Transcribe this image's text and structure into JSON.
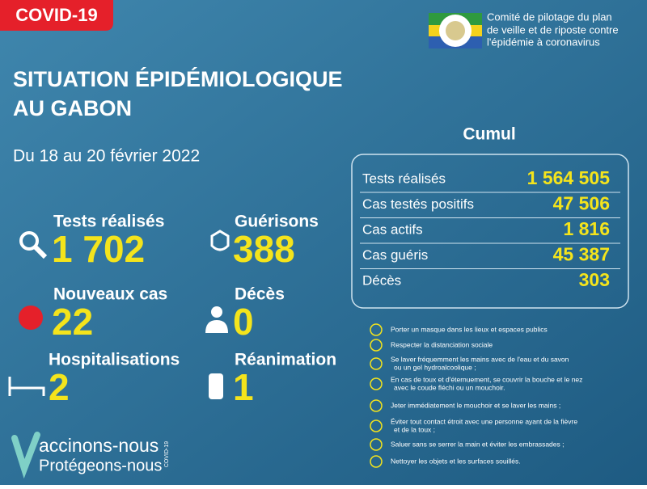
{
  "badge": "COVID-19",
  "committee": {
    "lines": [
      "Comité de pilotage du plan",
      "de veille et de riposte contre",
      "l'épidémie à coronavirus"
    ]
  },
  "title": {
    "lines": [
      "SITUATION ÉPIDÉMIOLOGIQUE",
      "AU GABON"
    ]
  },
  "period": "Du 18 au 20 février 2022",
  "stats": [
    {
      "label": "Tests réalisés",
      "value": "1 702"
    },
    {
      "label": "Guérisons",
      "value": "388"
    },
    {
      "label": "Nouveaux cas",
      "value": "22"
    },
    {
      "label": "Décès",
      "value": "0"
    },
    {
      "label": "Hospitalisations",
      "value": "2"
    },
    {
      "label": "Réanimation",
      "value": "1"
    }
  ],
  "cumul": {
    "title": "Cumul",
    "rows": [
      {
        "label": "Tests réalisés",
        "value": "1 564 505"
      },
      {
        "label": "Cas testés positifs",
        "value": "47 506"
      },
      {
        "label": "Cas actifs",
        "value": "1 816"
      },
      {
        "label": "Cas guéris",
        "value": "45 387"
      },
      {
        "label": "Décès",
        "value": "303"
      }
    ]
  },
  "advice": [
    [
      "Porter un masque dans les lieux et espaces publics"
    ],
    [
      "Respecter la distanciation sociale"
    ],
    [
      "Se laver fréquemment les mains avec de l'eau et du savon",
      "ou un gel hydroalcoolique ;"
    ],
    [
      "En cas de toux et d'éternuement, se couvrir la bouche et le nez",
      "avec le coude fléchi ou un mouchoir."
    ],
    [
      "Jeter immédiatement le mouchoir et se laver les mains ;"
    ],
    [
      "Éviter tout contact étroit avec une personne ayant de la fièvre",
      "et de la toux ;"
    ],
    [
      "Saluer sans se serrer la main et éviter les embrassades ;"
    ],
    [
      "Nettoyer les objets et les surfaces souillés."
    ]
  ],
  "footer": {
    "slogan1": "accinons-nous",
    "slogan2": "Protégeons-nous",
    "tag": "COVID-19"
  }
}
